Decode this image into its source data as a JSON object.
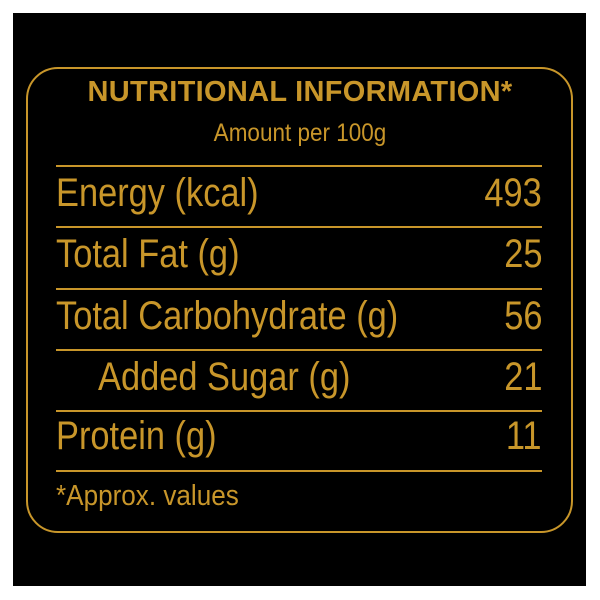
{
  "colors": {
    "background": "#000000",
    "accent": "#c8962a"
  },
  "title": "NUTRITIONAL INFORMATION*",
  "subtitle": "Amount per 100g",
  "rows": [
    {
      "label": "Energy (kcal)",
      "value": "493"
    },
    {
      "label": "Total Fat (g)",
      "value": "25"
    },
    {
      "label": "Total Carbohydrate (g)",
      "value": "56"
    },
    {
      "label": "Added Sugar (g)",
      "value": "21"
    },
    {
      "label": "Protein (g)",
      "value": "11"
    }
  ],
  "footnote": "*Approx. values"
}
